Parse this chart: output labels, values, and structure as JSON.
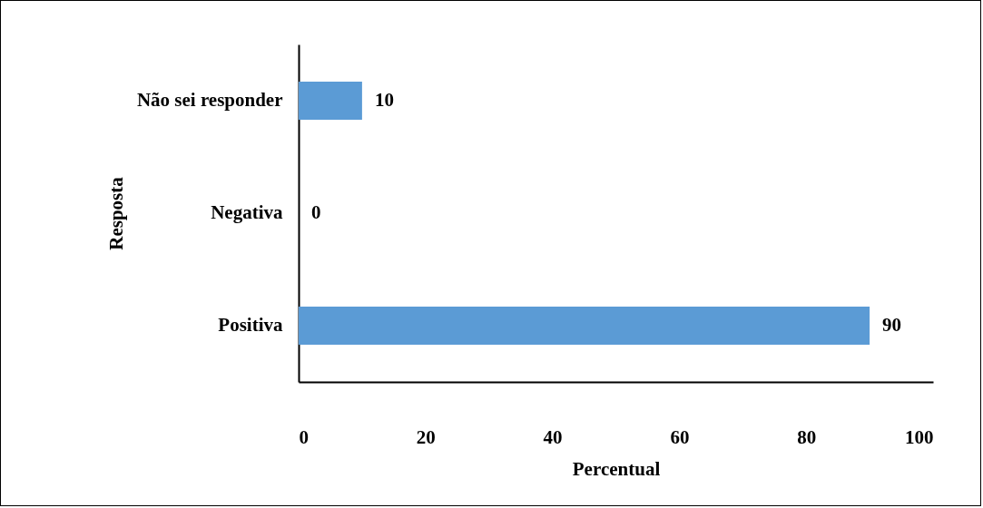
{
  "chart_data": {
    "type": "bar",
    "orientation": "horizontal",
    "xlabel": "Percentual",
    "ylabel": "Resposta",
    "categories": [
      "Não sei responder",
      "Negativa",
      "Positiva"
    ],
    "values": [
      10,
      0,
      90
    ],
    "color": "#5b9bd5",
    "data_labels": true,
    "grid": false,
    "xlim": [
      0,
      100
    ],
    "xticks": [
      0,
      20,
      40,
      60,
      80,
      100
    ]
  }
}
